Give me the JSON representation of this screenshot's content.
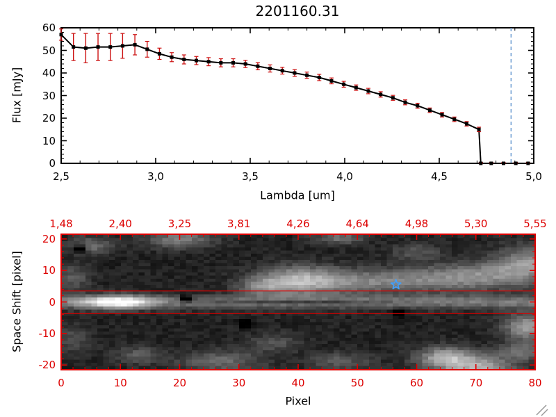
{
  "chart_data": [
    {
      "type": "line",
      "title": "2201160.31",
      "xlabel": "Lambda [um]",
      "ylabel": "Flux [mJy]",
      "xlim": [
        2.5,
        5.0
      ],
      "ylim": [
        0,
        60
      ],
      "xtick_values": [
        2.5,
        3.0,
        3.5,
        4.0,
        4.5,
        5.0
      ],
      "xtick_labels": [
        "2,5",
        "3,0",
        "3,5",
        "4,0",
        "4,5",
        "5,0"
      ],
      "ytick_values": [
        0,
        10,
        20,
        30,
        40,
        50,
        60
      ],
      "ytick_labels": [
        "0",
        "10",
        "20",
        "30",
        "40",
        "50",
        "60"
      ],
      "x": [
        2.5,
        2.565,
        2.63,
        2.695,
        2.76,
        2.825,
        2.89,
        2.955,
        3.02,
        3.085,
        3.15,
        3.215,
        3.28,
        3.345,
        3.41,
        3.475,
        3.54,
        3.605,
        3.67,
        3.735,
        3.8,
        3.865,
        3.93,
        3.995,
        4.06,
        4.125,
        4.19,
        4.255,
        4.32,
        4.385,
        4.45,
        4.515,
        4.58,
        4.645,
        4.71,
        4.72,
        4.775,
        4.84,
        4.905,
        4.97
      ],
      "y": [
        57,
        51.5,
        51,
        51.5,
        51.5,
        52,
        52.5,
        50.5,
        48.5,
        47,
        46,
        45.5,
        45,
        44.5,
        44.5,
        44,
        43,
        42,
        41,
        40,
        39,
        38,
        36.5,
        35,
        33.5,
        32,
        30.5,
        29,
        27,
        25.5,
        23.5,
        21.5,
        19.5,
        17.5,
        15,
        0,
        0,
        0,
        0,
        0
      ],
      "yerr": [
        2.5,
        6,
        6.5,
        6,
        6,
        5.5,
        4.5,
        3.5,
        2.5,
        2,
        2,
        1.8,
        1.8,
        1.8,
        1.8,
        1.6,
        1.6,
        1.6,
        1.5,
        1.5,
        1.4,
        1.4,
        1.3,
        1.3,
        1.2,
        1.2,
        1.2,
        1.1,
        1.1,
        1.1,
        1,
        1,
        1,
        1,
        1,
        0.4,
        0.4,
        0.4,
        0.4,
        0.4
      ],
      "line_color": "#000000",
      "marker": "square",
      "marker_color": "#000000",
      "error_color": "#cc1111",
      "vline": {
        "x": 4.88,
        "color": "#6b9bd2",
        "style": "dashed"
      },
      "grid": false
    },
    {
      "type": "heatmap",
      "xlabel": "Pixel",
      "ylabel": "Space Shift [pixel]",
      "axis_color": "#dd0000",
      "xlim": [
        0,
        80
      ],
      "ylim": [
        -21.5,
        21.5
      ],
      "xtick_values": [
        0,
        10,
        20,
        30,
        40,
        50,
        60,
        70,
        80
      ],
      "xtick_labels": [
        "0",
        "10",
        "20",
        "30",
        "40",
        "50",
        "60",
        "70",
        "80"
      ],
      "top_tick_labels": [
        "1,48",
        "2,40",
        "3,25",
        "3,81",
        "4,26",
        "4,64",
        "4,98",
        "5,30",
        "5,55"
      ],
      "ytick_values": [
        -20,
        -10,
        0,
        10,
        20
      ],
      "ytick_labels": [
        "-20",
        "-10",
        "0",
        "10",
        "20"
      ],
      "aperture_lines_y": [
        3.5,
        -3.7
      ],
      "aperture_color": "#dd0000",
      "star_marker": {
        "x": 56.5,
        "y": 5.5,
        "color": "#3fa0ff"
      },
      "background_level": 0.13,
      "noise_amp": 0.055,
      "trace": {
        "base": 0.35,
        "peak_x": 9.5,
        "peak_amp": 0.68,
        "peak_sigma": 4.0,
        "sigma_y": 1.5
      },
      "blobs": [
        {
          "x": 40,
          "y": 7,
          "sx": 5,
          "sy": 3.2,
          "amp": 0.5
        },
        {
          "x": 50,
          "y": 6.5,
          "sx": 7,
          "sy": 2.8,
          "amp": 0.32
        },
        {
          "x": 62,
          "y": 7.5,
          "sx": 6,
          "sy": 2.8,
          "amp": 0.28
        },
        {
          "x": 71,
          "y": 8.5,
          "sx": 5,
          "sy": 3.2,
          "amp": 0.33
        },
        {
          "x": 79,
          "y": 12,
          "sx": 4,
          "sy": 4,
          "amp": 0.45
        },
        {
          "x": 34,
          "y": 5,
          "sx": 3,
          "sy": 2,
          "amp": 0.28
        },
        {
          "x": 5,
          "y": 18,
          "sx": 2.5,
          "sy": 2,
          "amp": 0.3
        },
        {
          "x": 20,
          "y": 20,
          "sx": 4,
          "sy": 2,
          "amp": 0.35
        },
        {
          "x": 47,
          "y": 20.5,
          "sx": 3,
          "sy": 1.5,
          "amp": 0.3
        },
        {
          "x": 60,
          "y": 16,
          "sx": 3,
          "sy": 2,
          "amp": 0.2
        },
        {
          "x": 65,
          "y": -18,
          "sx": 3.5,
          "sy": 2.5,
          "amp": 0.55
        },
        {
          "x": 71,
          "y": -21,
          "sx": 4,
          "sy": 2.5,
          "amp": 0.5
        },
        {
          "x": 79,
          "y": -8,
          "sx": 3,
          "sy": 3,
          "amp": 0.5
        },
        {
          "x": 78,
          "y": -16,
          "sx": 3,
          "sy": 2,
          "amp": 0.3
        },
        {
          "x": 27,
          "y": -19,
          "sx": 5,
          "sy": 2.5,
          "amp": 0.28
        },
        {
          "x": 36,
          "y": -13,
          "sx": 3,
          "sy": 2,
          "amp": 0.2
        },
        {
          "x": 13,
          "y": -17,
          "sx": 3,
          "sy": 2,
          "amp": 0.22
        },
        {
          "x": 47,
          "y": -19,
          "sx": 4,
          "sy": 2,
          "amp": 0.22
        },
        {
          "x": 2,
          "y": 8,
          "sx": 2,
          "sy": 3,
          "amp": 0.22
        },
        {
          "x": 2,
          "y": -12,
          "sx": 2,
          "sy": 3,
          "amp": 0.18
        },
        {
          "x": 40,
          "y": 0,
          "sx": 11,
          "sy": 0.5,
          "amp": -0.3
        },
        {
          "x": 21,
          "y": 1,
          "sx": 0.8,
          "sy": 0.8,
          "amp": -0.5
        },
        {
          "x": 3,
          "y": 17,
          "sx": 0.8,
          "sy": 0.8,
          "amp": -0.45
        },
        {
          "x": 31,
          "y": -7,
          "sx": 0.8,
          "sy": 0.8,
          "amp": -0.4
        },
        {
          "x": 57,
          "y": -3.5,
          "sx": 0.8,
          "sy": 0.8,
          "amp": -0.35
        }
      ]
    }
  ]
}
